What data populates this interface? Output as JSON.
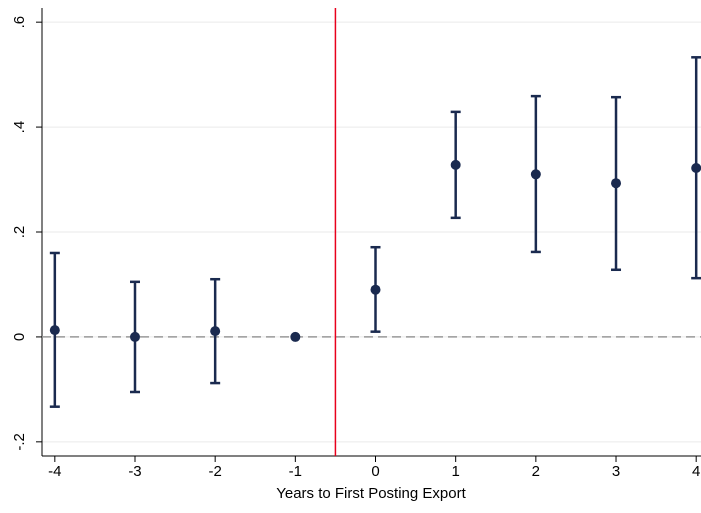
{
  "chart_data": {
    "type": "errorbar",
    "x_label": "Years to First Posting Export",
    "x": [
      -4,
      -3,
      -2,
      -1,
      0,
      1,
      2,
      3,
      4
    ],
    "values": [
      0.013,
      0,
      0.011,
      0,
      0.09,
      0.328,
      0.31,
      0.293,
      0.322
    ],
    "lower": [
      -0.133,
      -0.105,
      -0.088,
      null,
      0.01,
      0.227,
      0.162,
      0.128,
      0.112
    ],
    "upper": [
      0.16,
      0.105,
      0.11,
      null,
      0.171,
      0.429,
      0.459,
      0.457,
      0.533
    ],
    "color": "#1a2a4f",
    "xlim": [
      -4.16,
      4.06
    ],
    "xticks": [
      -4,
      -3,
      -2,
      -1,
      0,
      1,
      2,
      3,
      4
    ],
    "ylim": [
      -0.227,
      0.627
    ],
    "yticks": [
      {
        "value": -0.2,
        "label": "-.2"
      },
      0,
      {
        "value": 0.2,
        "label": ".2"
      },
      {
        "value": 0.4,
        "label": ".4"
      },
      {
        "value": 0.6,
        "label": ".6"
      }
    ],
    "grid": true,
    "reference_line_y": 0,
    "reference_line_y_color": "#999999",
    "reference_line_x": -0.5,
    "reference_line_x_color": "#e8001c"
  }
}
